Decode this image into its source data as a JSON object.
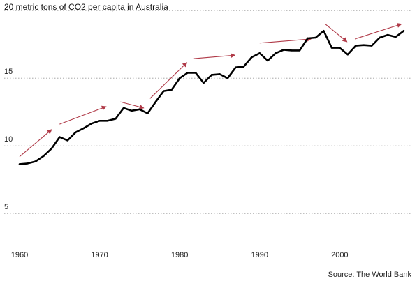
{
  "colors": {
    "line": "#000000",
    "arrow": "#b03a48",
    "grid": "#9a9a9a",
    "text": "#222222"
  },
  "chart_data": {
    "type": "line",
    "title": "20 metric tons of CO2 per capita in Australia",
    "source": "Source: The World Bank",
    "xlabel": "",
    "ylabel": "",
    "xlim": [
      1960,
      2008
    ],
    "ylim": [
      3,
      20
    ],
    "grid": true,
    "grid_style": "dotted-horizontal",
    "x_ticks": [
      1960,
      1970,
      1980,
      1990,
      2000
    ],
    "x_tick_labels": [
      "1960",
      "1970",
      "1980",
      "1990",
      "2000"
    ],
    "y_ticks": [
      5,
      10,
      15,
      20
    ],
    "y_tick_labels": [
      "5",
      "10",
      "15"
    ],
    "series": [
      {
        "x": [
          1960,
          1961,
          1962,
          1963,
          1964,
          1965,
          1966,
          1967,
          1968,
          1969,
          1970,
          1971,
          1972,
          1973,
          1974,
          1975,
          1976,
          1977,
          1978,
          1979,
          1980,
          1981,
          1982,
          1983,
          1984,
          1985,
          1986,
          1987,
          1988,
          1989,
          1990,
          1991,
          1992,
          1993,
          1994,
          1995,
          1996,
          1997,
          1998,
          1999,
          2000,
          2001,
          2002,
          2003,
          2004,
          2005,
          2006,
          2007,
          2008
        ],
        "values": [
          8.65,
          8.7,
          8.85,
          9.25,
          9.8,
          10.65,
          10.4,
          11.0,
          11.3,
          11.65,
          11.85,
          11.85,
          12.0,
          12.8,
          12.6,
          12.7,
          12.4,
          13.25,
          14.05,
          14.15,
          15.0,
          15.4,
          15.4,
          14.65,
          15.25,
          15.3,
          15.0,
          15.8,
          15.85,
          16.55,
          16.85,
          16.3,
          16.85,
          17.1,
          17.05,
          17.05,
          17.95,
          18.0,
          18.5,
          17.25,
          17.25,
          16.75,
          17.4,
          17.45,
          17.4,
          18.0,
          18.2,
          18.05,
          18.5
        ]
      }
    ],
    "annotations": [
      {
        "type": "arrow",
        "from": [
          1960,
          9.2
        ],
        "to": [
          1964,
          11.2
        ]
      },
      {
        "type": "arrow",
        "from": [
          1965,
          11.6
        ],
        "to": [
          1970.8,
          12.9
        ]
      },
      {
        "type": "arrow",
        "from": [
          1972.6,
          13.25
        ],
        "to": [
          1975.5,
          12.8
        ]
      },
      {
        "type": "arrow",
        "from": [
          1976.3,
          13.5
        ],
        "to": [
          1980.9,
          16.15
        ]
      },
      {
        "type": "arrow",
        "from": [
          1981.8,
          16.45
        ],
        "to": [
          1986.9,
          16.7
        ]
      },
      {
        "type": "arrow",
        "from": [
          1990,
          17.6
        ],
        "to": [
          1996.4,
          17.9
        ]
      },
      {
        "type": "arrow",
        "from": [
          1998.2,
          19.0
        ],
        "to": [
          2000.9,
          17.7
        ]
      },
      {
        "type": "arrow",
        "from": [
          2001.9,
          17.9
        ],
        "to": [
          2007.7,
          19.0
        ]
      }
    ]
  }
}
